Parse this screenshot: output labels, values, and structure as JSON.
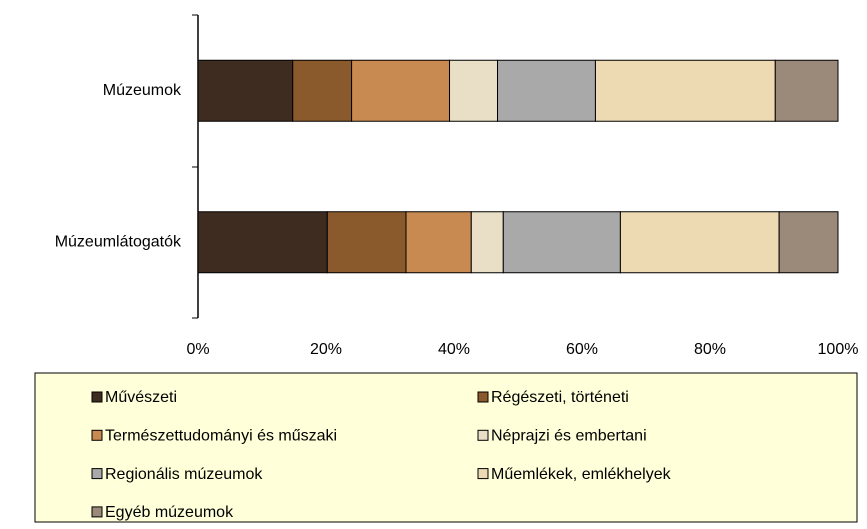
{
  "chart_data": {
    "type": "stacked_bar_horizontal",
    "categories": [
      "Múzeumok",
      "Múzeumlátogatók"
    ],
    "series": [
      {
        "name": "Művészeti",
        "color": "#3d2c1f",
        "values": [
          14.8,
          20.2
        ]
      },
      {
        "name": "Régészeti, történeti",
        "color": "#8b5a2c",
        "values": [
          9.2,
          12.3
        ]
      },
      {
        "name": "Természettudományi és műszaki",
        "color": "#c98a52",
        "values": [
          15.3,
          10.2
        ]
      },
      {
        "name": "Néprajzi és embertani",
        "color": "#e9dfc6",
        "values": [
          7.5,
          5.0
        ]
      },
      {
        "name": "Regionális múzeumok",
        "color": "#a9a9aa",
        "values": [
          15.3,
          18.3
        ]
      },
      {
        "name": "Műemlékek, emlékhelyek",
        "color": "#eddab2",
        "values": [
          28.1,
          24.8
        ]
      },
      {
        "name": "Egyéb múzeumok",
        "color": "#9b8a7a",
        "values": [
          9.8,
          9.2
        ]
      }
    ],
    "xlim": [
      0,
      100
    ],
    "xticks": [
      {
        "value": 0,
        "label": "0%"
      },
      {
        "value": 20,
        "label": "20%"
      },
      {
        "value": 40,
        "label": "40%"
      },
      {
        "value": 60,
        "label": "60%"
      },
      {
        "value": 80,
        "label": "80%"
      },
      {
        "value": 100,
        "label": "100%"
      }
    ],
    "legend": "bottom"
  }
}
